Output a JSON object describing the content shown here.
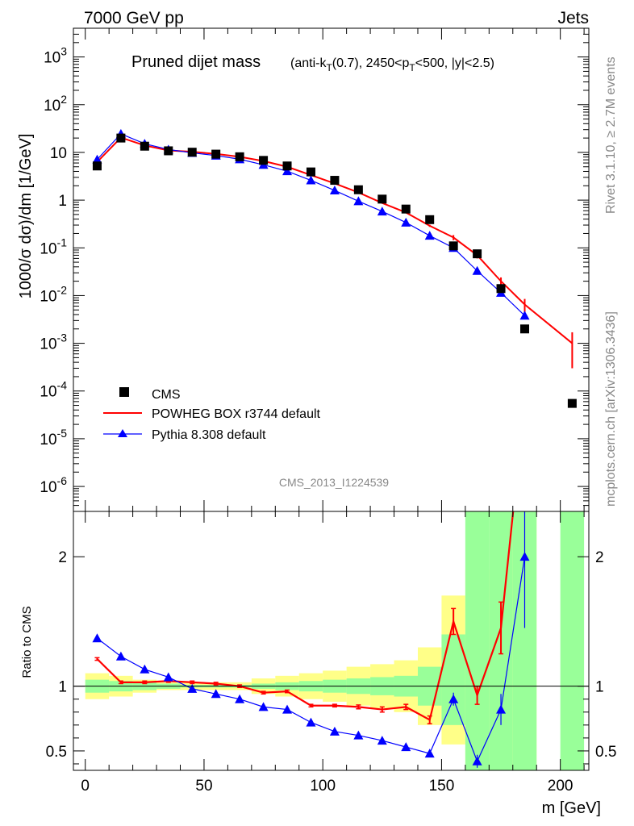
{
  "header": {
    "left": "7000 GeV pp",
    "right": "Jets"
  },
  "side_labels": {
    "rivet": "Rivet 3.1.10, ≥ 2.7M events",
    "mcplots": "mcplots.cern.ch [arXiv:1306.3436]"
  },
  "chart_data": [
    {
      "panel": "main",
      "type": "scatter",
      "title": "Pruned dijet mass",
      "title_suffix": "(anti-k_T(0.7), 2450<p_T<500, |y|<2.5)",
      "ylabel": "1000/σ dσ)/dm [1/GeV]",
      "y_scale": "log",
      "ylim": [
        3e-07,
        4000
      ],
      "xlim": [
        -5,
        212
      ],
      "y_tick_labels": [
        "10^-6",
        "10^-5",
        "10^-4",
        "10^-3",
        "10^-2",
        "10^-1",
        "1",
        "10",
        "10^2",
        "10^3"
      ],
      "analysis_id": "CMS_2013_I1224539",
      "legend_position": "lower-left",
      "series": [
        {
          "name": "CMS",
          "style": "square-marker",
          "color": "#000000",
          "x": [
            5,
            15,
            25,
            35,
            45,
            55,
            65,
            75,
            85,
            95,
            105,
            115,
            125,
            135,
            145,
            155,
            165,
            175,
            185,
            205
          ],
          "y": [
            5.2,
            20,
            13.5,
            10.8,
            10.1,
            9.2,
            8.1,
            6.8,
            5.2,
            3.9,
            2.6,
            1.65,
            1.05,
            0.65,
            0.39,
            0.11,
            0.075,
            0.014,
            0.002,
            5.5e-05
          ]
        },
        {
          "name": "POWHEG BOX r3744 default",
          "style": "line",
          "color": "#ff0000",
          "x": [
            5,
            15,
            25,
            35,
            45,
            55,
            65,
            75,
            85,
            95,
            105,
            115,
            125,
            135,
            145,
            155,
            165,
            175,
            185,
            205
          ],
          "y": [
            6.3,
            20.5,
            14,
            11,
            10.3,
            9.3,
            8.1,
            6.6,
            5.0,
            3.35,
            2.23,
            1.45,
            0.87,
            0.55,
            0.29,
            0.165,
            0.07,
            0.02,
            0.0065,
            0.001
          ],
          "yerr": [
            0.2,
            0.5,
            0.3,
            0.2,
            0.2,
            0.2,
            0.2,
            0.1,
            0.1,
            0.07,
            0.05,
            0.03,
            0.02,
            0.02,
            0.015,
            0.02,
            0.01,
            0.004,
            0.002,
            0.0007
          ]
        },
        {
          "name": "Pythia 8.308 default",
          "style": "line-triangle",
          "color": "#0000ff",
          "x": [
            5,
            15,
            25,
            35,
            45,
            55,
            65,
            75,
            85,
            95,
            105,
            115,
            125,
            135,
            145,
            155,
            165,
            175,
            185
          ],
          "y": [
            7.1,
            24.5,
            15.2,
            11.5,
            9.8,
            8.6,
            7.2,
            5.5,
            4.05,
            2.6,
            1.6,
            0.95,
            0.58,
            0.34,
            0.18,
            0.1,
            0.033,
            0.0115,
            0.0038
          ],
          "yerr": [
            0.2,
            0.5,
            0.3,
            0.2,
            0.2,
            0.2,
            0.2,
            0.1,
            0.1,
            0.05,
            0.04,
            0.02,
            0.015,
            0.01,
            0.008,
            0.01,
            0.004,
            0.002,
            0.001
          ]
        }
      ]
    },
    {
      "panel": "ratio",
      "type": "line",
      "ylabel": "Ratio to CMS",
      "xlabel": "m [GeV]",
      "ylim": [
        0.35,
        2.35
      ],
      "xlim": [
        -5,
        212
      ],
      "y_tick_labels": [
        "0.5",
        "1",
        "2"
      ],
      "x_ticks": [
        0,
        50,
        100,
        150,
        200
      ],
      "bands": {
        "yellow": {
          "color": "#ffff88",
          "edges": [
            0,
            10,
            20,
            30,
            40,
            50,
            60,
            70,
            80,
            90,
            100,
            110,
            120,
            130,
            140,
            150,
            160,
            170,
            180,
            190,
            200,
            210
          ],
          "low": [
            0.9,
            0.92,
            0.95,
            0.97,
            0.97,
            0.97,
            0.97,
            0.94,
            0.92,
            0.9,
            0.88,
            0.85,
            0.83,
            0.8,
            0.7,
            0.55,
            0.4,
            0.37,
            0.35,
            null,
            null
          ],
          "high": [
            1.1,
            1.08,
            1.05,
            1.03,
            1.03,
            1.03,
            1.03,
            1.06,
            1.08,
            1.1,
            1.12,
            1.15,
            1.17,
            1.2,
            1.3,
            1.7,
            1.9,
            2.3,
            2.35,
            null,
            null
          ]
        },
        "green": {
          "color": "#99ff99",
          "edges": [
            0,
            10,
            20,
            30,
            40,
            50,
            60,
            70,
            80,
            90,
            100,
            110,
            120,
            130,
            140,
            150,
            160,
            170,
            180,
            190,
            200,
            210
          ],
          "low": [
            0.95,
            0.96,
            0.97,
            0.98,
            0.99,
            0.99,
            0.99,
            0.98,
            0.97,
            0.96,
            0.95,
            0.94,
            0.93,
            0.92,
            0.85,
            0.7,
            0.35,
            0.35,
            0.35,
            null,
            0.35
          ],
          "high": [
            1.05,
            1.04,
            1.03,
            1.02,
            1.01,
            1.01,
            1.01,
            1.02,
            1.03,
            1.04,
            1.05,
            1.06,
            1.07,
            1.08,
            1.15,
            1.4,
            2.35,
            2.35,
            2.35,
            null,
            2.35
          ]
        }
      },
      "series": [
        {
          "name": "POWHEG BOX r3744 default",
          "color": "#ff0000",
          "x": [
            5,
            15,
            25,
            35,
            45,
            55,
            65,
            75,
            85,
            95,
            105,
            115,
            125,
            135,
            145,
            155,
            165,
            175,
            185
          ],
          "y": [
            1.21,
            1.03,
            1.03,
            1.04,
            1.03,
            1.02,
            1.0,
            0.95,
            0.96,
            0.85,
            0.85,
            0.84,
            0.82,
            0.84,
            0.74,
            1.5,
            0.93,
            1.45,
            3.2
          ],
          "yerr": [
            0.01,
            0.01,
            0.01,
            0.01,
            0.01,
            0.01,
            0.01,
            0.01,
            0.01,
            0.01,
            0.01,
            0.015,
            0.02,
            0.02,
            0.03,
            0.1,
            0.07,
            0.2,
            0.4
          ]
        },
        {
          "name": "Pythia 8.308 default",
          "color": "#0000ff",
          "x": [
            5,
            15,
            25,
            35,
            45,
            55,
            65,
            75,
            85,
            95,
            105,
            115,
            125,
            135,
            145,
            155,
            165,
            175,
            185
          ],
          "y": [
            1.37,
            1.23,
            1.13,
            1.07,
            0.98,
            0.94,
            0.9,
            0.84,
            0.82,
            0.72,
            0.65,
            0.62,
            0.58,
            0.53,
            0.48,
            0.9,
            0.42,
            0.82,
            2.0
          ],
          "yerr": [
            0.01,
            0.01,
            0.01,
            0.01,
            0.01,
            0.01,
            0.01,
            0.01,
            0.01,
            0.01,
            0.01,
            0.01,
            0.015,
            0.02,
            0.02,
            0.05,
            0.05,
            0.12,
            0.55
          ]
        }
      ]
    }
  ]
}
